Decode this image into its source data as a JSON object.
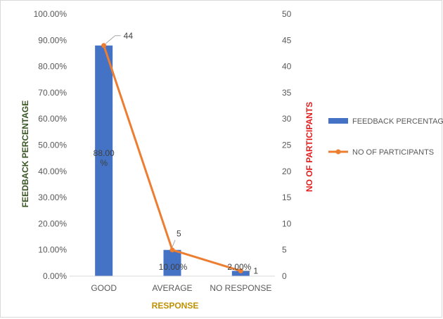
{
  "chart_data": {
    "type": "bar+line",
    "categories": [
      "GOOD",
      "AVERAGE",
      "NO RESPONSE"
    ],
    "series": [
      {
        "name": "FEEDBACK PERCENTAGE",
        "type": "bar",
        "axis": "left",
        "values": [
          88.0,
          10.0,
          2.0
        ],
        "labels": [
          "88.00\n%",
          "10.00%",
          "2.00%"
        ],
        "color": "#4472c4"
      },
      {
        "name": "NO OF PARTICIPANTS",
        "type": "line",
        "axis": "right",
        "values": [
          44,
          5,
          1
        ],
        "labels": [
          "44",
          "5",
          "1"
        ],
        "color": "#ed7d31"
      }
    ],
    "xlabel": "RESPONSE",
    "ylabel": "FEEDBACK PERCENTAGE",
    "y2label": "NO OF PARTICIPANTS",
    "ylim": [
      0,
      100
    ],
    "y2lim": [
      0,
      50
    ],
    "yticks": [
      "0.00%",
      "10.00%",
      "20.00%",
      "30.00%",
      "40.00%",
      "50.00%",
      "60.00%",
      "70.00%",
      "80.00%",
      "90.00%",
      "100.00%"
    ],
    "y2ticks": [
      "0",
      "5",
      "10",
      "15",
      "20",
      "25",
      "30",
      "35",
      "40",
      "45",
      "50"
    ],
    "grid": false,
    "legend": "right"
  }
}
